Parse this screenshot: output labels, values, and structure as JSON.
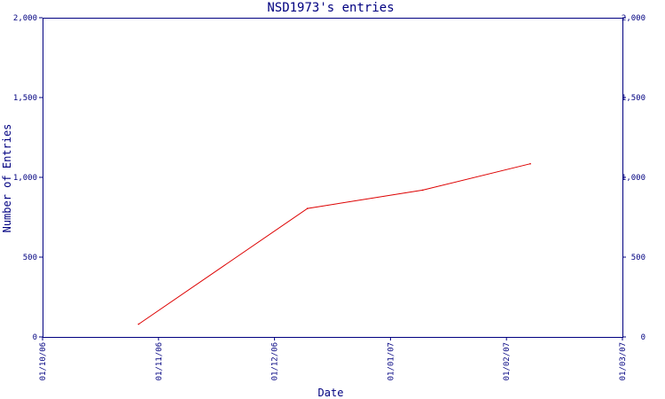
{
  "chart_data": {
    "type": "line",
    "title": "NSD1973's entries",
    "xlabel": "Date",
    "ylabel": "Number of Entries",
    "x_ticks": [
      "01/10/06",
      "01/11/06",
      "01/12/06",
      "01/01/07",
      "01/02/07",
      "01/03/07"
    ],
    "y_ticks": [
      "0",
      "500",
      "1,000",
      "1,500",
      "2,000"
    ],
    "ylim": [
      0,
      2000
    ],
    "xlim": [
      "2006-10-01",
      "2007-03-01"
    ],
    "grid": false,
    "series": [
      {
        "color": "#dd0000",
        "points": [
          {
            "x": "2006-10-26",
            "y": 80
          },
          {
            "x": "2006-12-09",
            "y": 805
          },
          {
            "x": "2007-01-08",
            "y": 920
          },
          {
            "x": "2007-02-05",
            "y": 1085
          }
        ]
      }
    ]
  },
  "colors": {
    "axis": "#000080",
    "text": "#000080",
    "line": "#dd0000"
  }
}
